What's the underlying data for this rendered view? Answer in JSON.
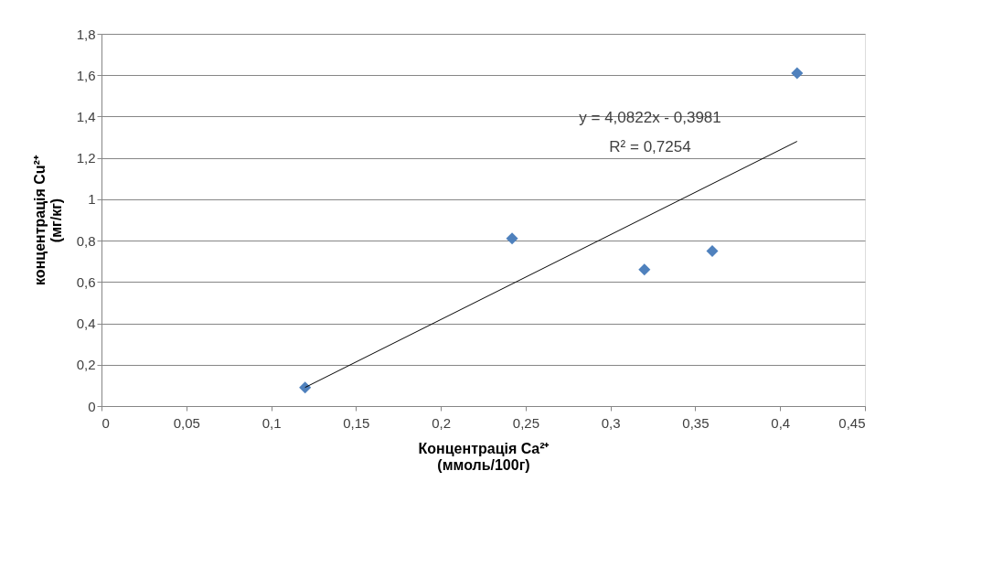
{
  "chart_data": {
    "type": "scatter",
    "xlabel": "Концентрація Ca²⁺\n(ммоль/100г)",
    "ylabel": "концентрація Cu²⁺\n(мг/кг)",
    "series": [
      {
        "color": "#4f81bd",
        "marker": "diamond",
        "x": [
          0.12,
          0.242,
          0.32,
          0.36,
          0.41
        ],
        "values": [
          0.09,
          0.81,
          0.66,
          0.75,
          1.61
        ]
      },
      {
        "type": "line",
        "color": "#000000",
        "marker": "none",
        "x": [
          0.12,
          0.41
        ],
        "values": [
          0.09,
          1.28
        ]
      }
    ],
    "xlim": [
      0,
      0.45
    ],
    "xticks": [
      0,
      {
        "value": 0.05,
        "label": "0,05"
      },
      {
        "value": 0.1,
        "label": "0,1"
      },
      {
        "value": 0.15,
        "label": "0,15"
      },
      {
        "value": 0.2,
        "label": "0,2"
      },
      {
        "value": 0.25,
        "label": "0,25"
      },
      {
        "value": 0.3,
        "label": "0,3"
      },
      {
        "value": 0.35,
        "label": "0,35"
      },
      {
        "value": 0.4,
        "label": "0,4"
      },
      {
        "value": 0.45,
        "label": "0,45"
      }
    ],
    "ylim": [
      0,
      1.8
    ],
    "yticks": [
      0,
      {
        "value": 0.2,
        "label": "0,2"
      },
      {
        "value": 0.4,
        "label": "0,4"
      },
      {
        "value": 0.6,
        "label": "0,6"
      },
      {
        "value": 0.8,
        "label": "0,8"
      },
      1,
      {
        "value": 1.2,
        "label": "1,2"
      },
      {
        "value": 1.4,
        "label": "1,4"
      },
      {
        "value": 1.6,
        "label": "1,6"
      },
      {
        "value": 1.8,
        "label": "1,8"
      }
    ],
    "annotations": [
      "y = 4,0822x - 0,3981",
      "R² = 0,7254"
    ],
    "grid": "y"
  }
}
